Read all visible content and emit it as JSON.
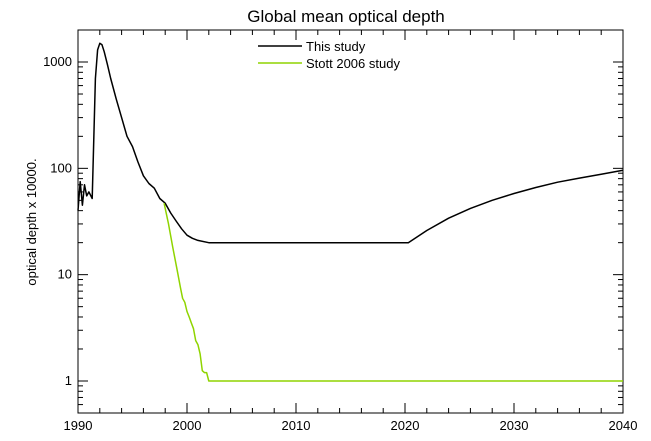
{
  "chart_data": {
    "type": "line",
    "title": "Global mean optical depth",
    "xlabel": "",
    "ylabel": "optical depth x 10000.",
    "xlim": [
      1990,
      2040
    ],
    "ylim": [
      0.5,
      2000
    ],
    "yscale": "log",
    "grid": false,
    "legend_position": "top-center",
    "x_ticks": [
      1990,
      2000,
      2010,
      2020,
      2030,
      2040
    ],
    "x_tick_labels": [
      "1990",
      "2000",
      "2010",
      "2020",
      "2030",
      "2040"
    ],
    "y_ticks": [
      1,
      10,
      100,
      1000
    ],
    "y_tick_labels": [
      "1",
      "10",
      "100",
      "1000"
    ],
    "series": [
      {
        "name": "This study",
        "color": "#000000",
        "x": [
          1990.0,
          1990.2,
          1990.4,
          1990.6,
          1990.8,
          1991.0,
          1991.3,
          1991.6,
          1991.8,
          1992.0,
          1992.2,
          1992.4,
          1992.7,
          1993.0,
          1993.5,
          1994.0,
          1994.5,
          1995.0,
          1995.5,
          1996.0,
          1996.5,
          1997.0,
          1997.5,
          1998.0,
          1998.5,
          1999.0,
          1999.5,
          2000.0,
          2000.5,
          2001.0,
          2002.0,
          2005.0,
          2010.0,
          2015.0,
          2020.3,
          2022.0,
          2024.0,
          2026.0,
          2028.0,
          2030.0,
          2032.0,
          2034.0,
          2036.0,
          2038.0,
          2040.0
        ],
        "y": [
          40,
          75,
          45,
          70,
          55,
          60,
          52,
          700,
          1300,
          1500,
          1450,
          1250,
          950,
          700,
          450,
          300,
          200,
          160,
          115,
          85,
          72,
          65,
          52,
          47,
          38,
          32,
          27,
          23.5,
          22,
          21,
          20,
          20,
          20,
          20,
          20,
          26,
          34,
          42,
          50,
          58,
          66,
          74,
          81,
          88,
          96
        ]
      },
      {
        "name": "Stott 2006 study",
        "color": "#8fd400",
        "x": [
          1997.9,
          1998.3,
          1998.7,
          1999.1,
          1999.4,
          1999.6,
          1999.8,
          2000.0,
          2000.2,
          2000.4,
          2000.6,
          2000.8,
          2001.0,
          2001.2,
          2001.4,
          2001.6,
          2001.8,
          2002.0,
          2002.1,
          2005.0,
          2010.0,
          2020.0,
          2030.0,
          2040.0
        ],
        "y": [
          47,
          30,
          18,
          11,
          7.5,
          6,
          5.5,
          4.5,
          4,
          3.5,
          3.1,
          2.4,
          2.2,
          1.8,
          1.25,
          1.2,
          1.2,
          1.0,
          1.0,
          1.0,
          1.0,
          1.0,
          1.0,
          1.0
        ]
      }
    ]
  }
}
